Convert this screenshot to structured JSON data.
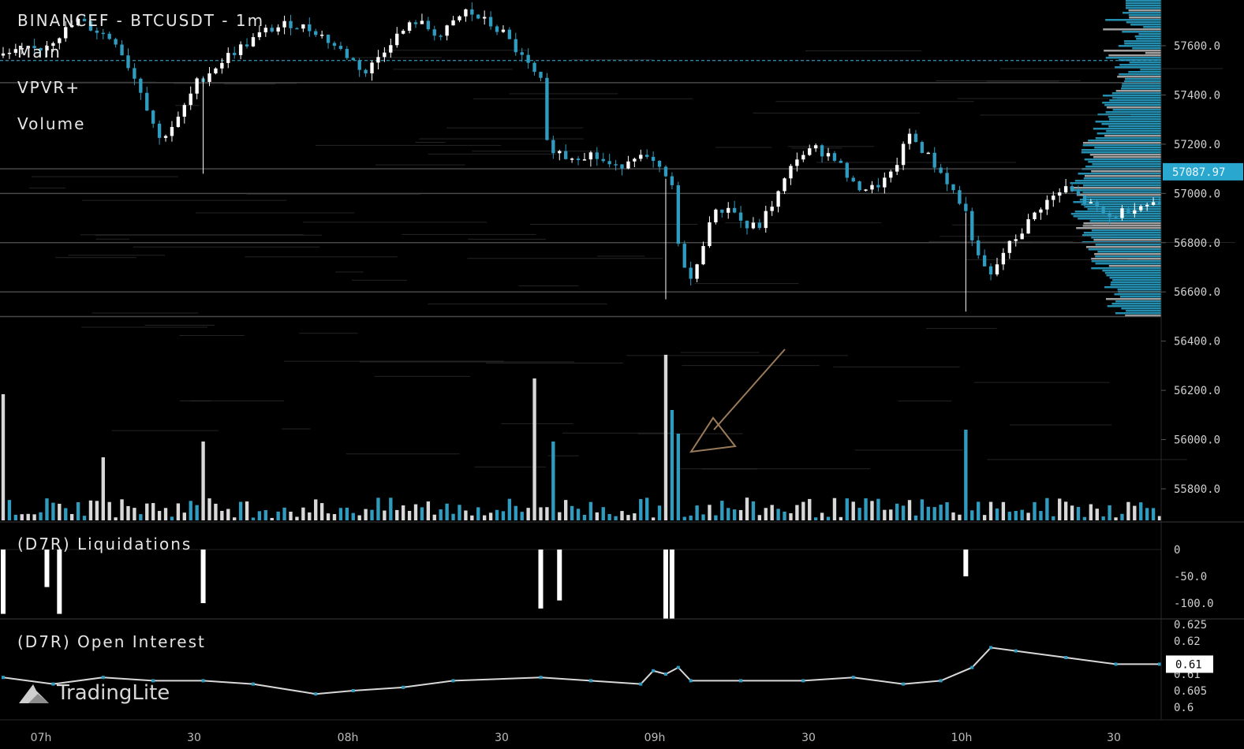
{
  "header": {
    "symbol_title": "BINANCEF - BTCUSDT - 1m",
    "layers": [
      "Main",
      "VPVR+",
      "Volume"
    ]
  },
  "panes": {
    "liquidations_title": "(D7R) Liquidations",
    "open_interest_title": "(D7R) Open Interest"
  },
  "brand": {
    "logo_icon": "tradinglite-logo-icon",
    "name": "TradingLite"
  },
  "colors": {
    "up": "#ffffff",
    "down": "#2f9bbf",
    "vp": "#2aa7cf",
    "accent_dashed": "#3aa8d0",
    "last_price_bg": "#2aa7cf",
    "annotation": "#9a7b5a"
  },
  "price_axis": {
    "ticks": [
      "57600.0",
      "57400.0",
      "57200.0",
      "57000.0",
      "56800.0",
      "56600.0",
      "56400.0",
      "56200.0",
      "56000.0",
      "55800.0"
    ],
    "last_price": "57087.97"
  },
  "liq_axis": {
    "ticks": [
      "0",
      "-50.0",
      "-100.0"
    ]
  },
  "oi_axis": {
    "ticks": [
      "0.625",
      "0.62",
      "0.61",
      "0.605",
      "0.6"
    ],
    "current": "0.61"
  },
  "time_axis": {
    "ticks": [
      "07h",
      "30",
      "08h",
      "30",
      "09h",
      "30",
      "10h",
      "30"
    ]
  },
  "chart_data": {
    "type": "candlestick",
    "interval": "1m",
    "price_range": [
      55750,
      57760
    ],
    "key_levels": [
      57540,
      57450,
      57100,
      57000,
      56800,
      56600,
      56500
    ],
    "price_path": [
      [
        0,
        57560
      ],
      [
        6,
        57590
      ],
      [
        12,
        57700
      ],
      [
        18,
        57620
      ],
      [
        22,
        57420
      ],
      [
        25,
        57220
      ],
      [
        28,
        57300
      ],
      [
        31,
        57450
      ],
      [
        36,
        57560
      ],
      [
        42,
        57660
      ],
      [
        46,
        57690
      ],
      [
        50,
        57660
      ],
      [
        55,
        57560
      ],
      [
        58,
        57490
      ],
      [
        62,
        57620
      ],
      [
        66,
        57700
      ],
      [
        70,
        57640
      ],
      [
        74,
        57740
      ],
      [
        77,
        57700
      ],
      [
        80,
        57650
      ],
      [
        83,
        57550
      ],
      [
        86,
        57450
      ],
      [
        87,
        57200
      ],
      [
        90,
        57150
      ],
      [
        94,
        57160
      ],
      [
        98,
        57100
      ],
      [
        101,
        57160
      ],
      [
        104,
        57120
      ],
      [
        107,
        57030
      ],
      [
        108,
        56780
      ],
      [
        110,
        56650
      ],
      [
        111,
        56700
      ],
      [
        113,
        56900
      ],
      [
        116,
        56950
      ],
      [
        119,
        56860
      ],
      [
        121,
        56870
      ],
      [
        124,
        57000
      ],
      [
        127,
        57150
      ],
      [
        130,
        57180
      ],
      [
        133,
        57150
      ],
      [
        136,
        57030
      ],
      [
        139,
        57020
      ],
      [
        142,
        57070
      ],
      [
        145,
        57240
      ],
      [
        148,
        57150
      ],
      [
        151,
        57050
      ],
      [
        154,
        56920
      ],
      [
        156,
        56730
      ],
      [
        158,
        56660
      ],
      [
        160,
        56760
      ],
      [
        163,
        56850
      ],
      [
        166,
        56950
      ],
      [
        170,
        57020
      ],
      [
        174,
        56950
      ],
      [
        177,
        56900
      ],
      [
        181,
        56950
      ],
      [
        184,
        56960
      ]
    ],
    "volume_spikes": [
      [
        0,
        160
      ],
      [
        16,
        80
      ],
      [
        32,
        100
      ],
      [
        85,
        180
      ],
      [
        88,
        100
      ],
      [
        106,
        210
      ],
      [
        107,
        140
      ],
      [
        108,
        110
      ],
      [
        154,
        115
      ]
    ],
    "liquidations": [
      [
        0,
        -120
      ],
      [
        7,
        -70
      ],
      [
        9,
        -120
      ],
      [
        32,
        -100
      ],
      [
        86,
        -110
      ],
      [
        89,
        -95
      ],
      [
        106,
        -130
      ],
      [
        107,
        -130
      ],
      [
        154,
        -50
      ]
    ],
    "open_interest": [
      [
        0,
        0.609
      ],
      [
        8,
        0.607
      ],
      [
        16,
        0.609
      ],
      [
        24,
        0.608
      ],
      [
        32,
        0.608
      ],
      [
        40,
        0.607
      ],
      [
        50,
        0.604
      ],
      [
        56,
        0.605
      ],
      [
        64,
        0.606
      ],
      [
        72,
        0.608
      ],
      [
        86,
        0.609
      ],
      [
        94,
        0.608
      ],
      [
        102,
        0.607
      ],
      [
        104,
        0.611
      ],
      [
        106,
        0.61
      ],
      [
        108,
        0.612
      ],
      [
        110,
        0.608
      ],
      [
        118,
        0.608
      ],
      [
        128,
        0.608
      ],
      [
        136,
        0.609
      ],
      [
        144,
        0.607
      ],
      [
        150,
        0.608
      ],
      [
        155,
        0.612
      ],
      [
        158,
        0.618
      ],
      [
        162,
        0.617
      ],
      [
        170,
        0.615
      ],
      [
        178,
        0.613
      ],
      [
        185,
        0.613
      ]
    ]
  }
}
